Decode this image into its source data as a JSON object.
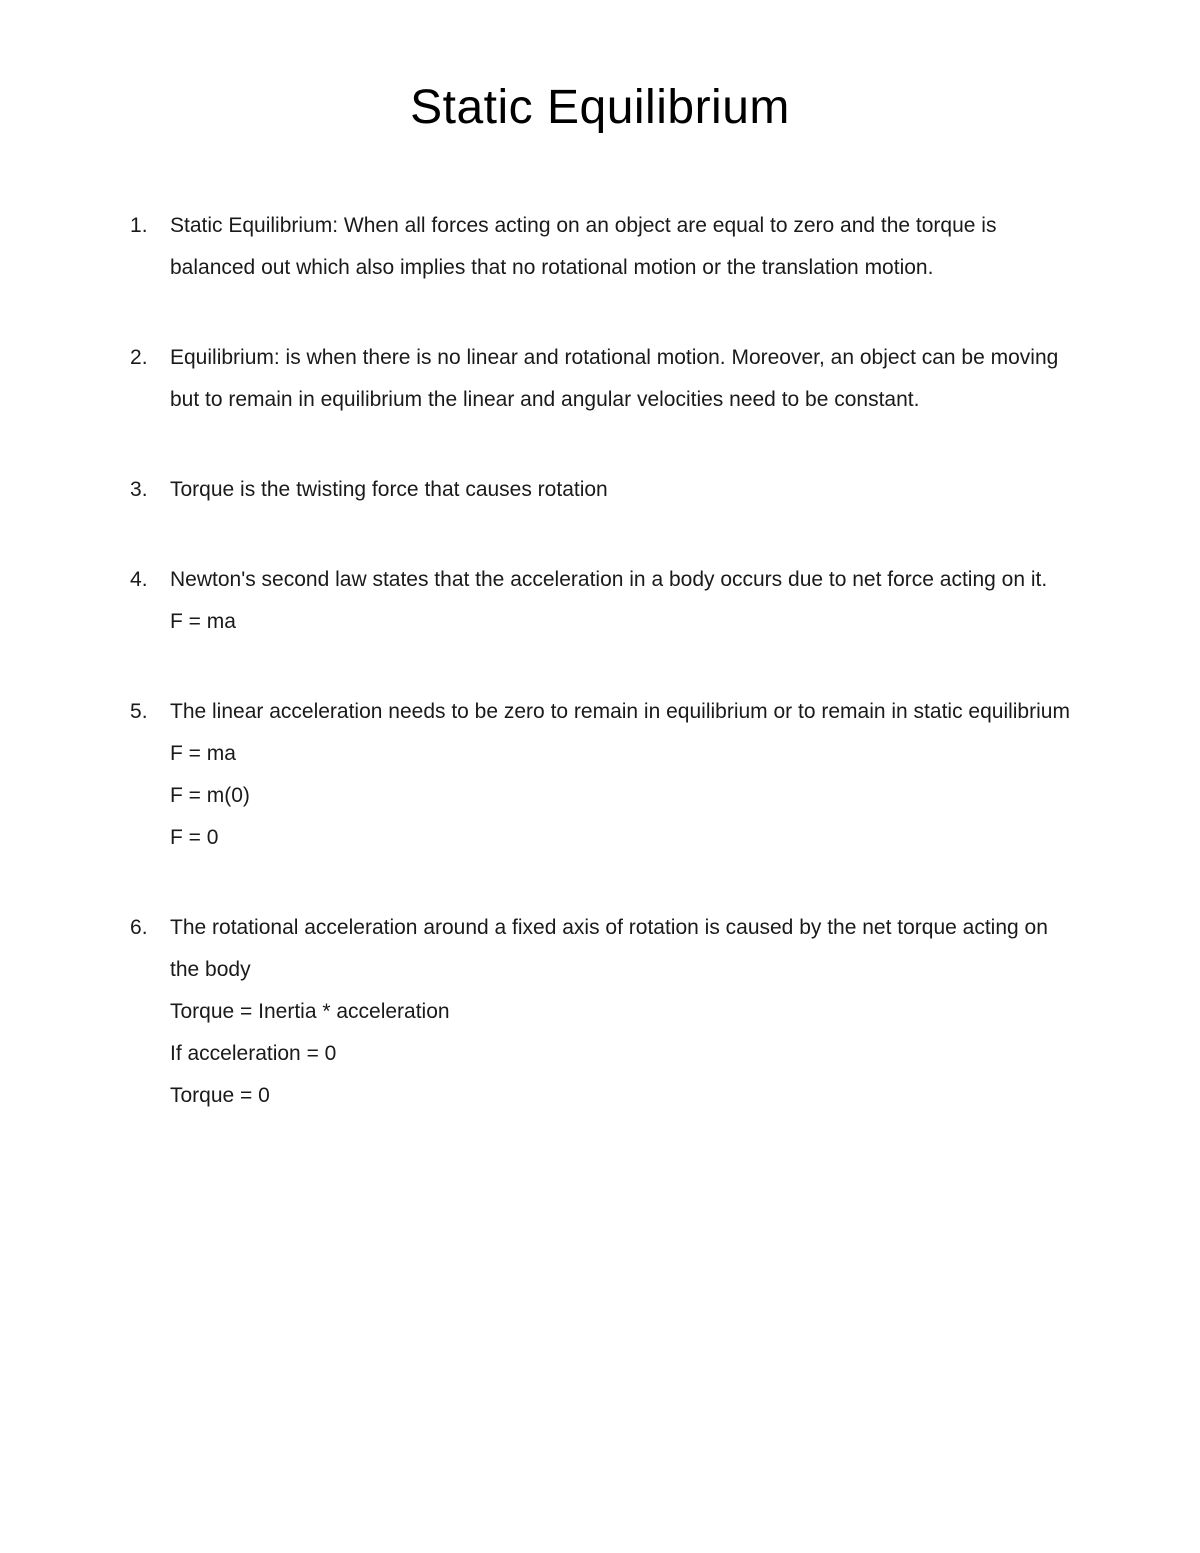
{
  "page": {
    "title": "Static Equilibrium",
    "background_color": "#ffffff",
    "text_color": "#000000",
    "title_fontsize": 48,
    "body_fontsize": 21,
    "line_height": 2.0,
    "font_family": "Arial"
  },
  "items": [
    {
      "lines": [
        "Static Equilibrium: When all forces acting on an object are equal to zero and the torque is balanced out which also implies that no rotational motion or the translation motion."
      ]
    },
    {
      "lines": [
        "Equilibrium: is when there is no linear and rotational motion. Moreover, an object can be moving but to remain in equilibrium the linear and angular velocities need to be constant."
      ]
    },
    {
      "lines": [
        "Torque is the twisting force that causes rotation"
      ]
    },
    {
      "lines": [
        "Newton's second law states that the acceleration in a body occurs due to net force acting on it.",
        "F = ma"
      ]
    },
    {
      "lines": [
        "The linear acceleration needs to be zero to remain in equilibrium or to remain in static equilibrium",
        "F = ma",
        "F = m(0)",
        "F = 0"
      ]
    },
    {
      "lines": [
        "The rotational acceleration around a fixed axis of rotation is caused by the net torque acting on the body",
        "Torque = Inertia * acceleration",
        "If acceleration = 0",
        "Torque = 0"
      ]
    }
  ]
}
